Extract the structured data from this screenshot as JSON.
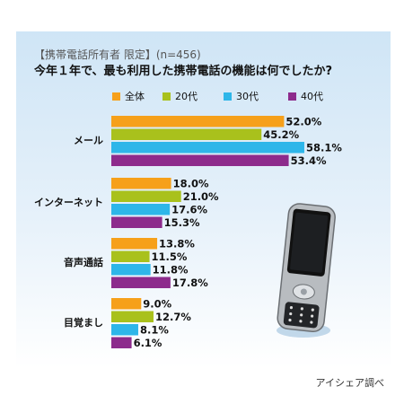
{
  "subtitle": "【携帯電話所有者 限定】(n=456)",
  "credit": "アイシェア調べ",
  "colors": {
    "全体": "#f6a01a",
    "20代": "#a9c11c",
    "30代": "#2eb6e9",
    "40代": "#8d2b8c"
  },
  "chart_data": {
    "type": "bar",
    "orientation": "horizontal",
    "title": "今年１年で、最も利用した携帯電話の機能は何でしたか?",
    "categories": [
      "メール",
      "インターネット",
      "音声通話",
      "目覚まし"
    ],
    "series": [
      {
        "name": "全体",
        "values": [
          52.0,
          18.0,
          13.8,
          9.0
        ],
        "labels": [
          "52.0%",
          "18.0%",
          "13.8%",
          "9.0%"
        ]
      },
      {
        "name": "20代",
        "values": [
          45.2,
          21.0,
          11.5,
          12.7
        ],
        "labels": [
          "45.2%",
          "21.0%",
          "11.5%",
          "12.7%"
        ]
      },
      {
        "name": "30代",
        "values": [
          58.1,
          17.6,
          11.8,
          8.1
        ],
        "labels": [
          "58.1%",
          "17.6%",
          "11.8%",
          "8.1%"
        ]
      },
      {
        "name": "40代",
        "values": [
          53.4,
          15.3,
          17.8,
          6.1
        ],
        "labels": [
          "53.4%",
          "15.3%",
          "17.8%",
          "6.1%"
        ]
      }
    ],
    "xlim": [
      0,
      100
    ],
    "legend": "top"
  }
}
